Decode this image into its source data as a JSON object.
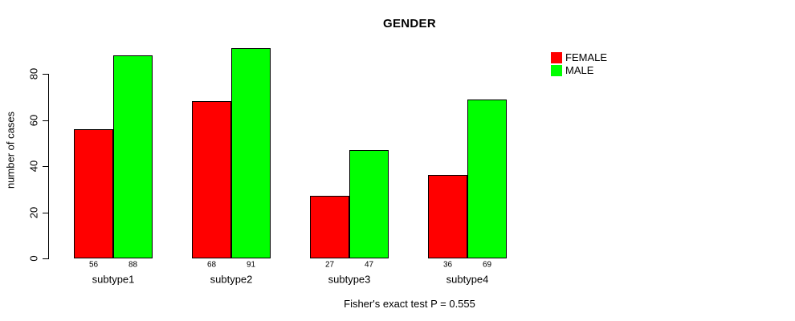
{
  "chart_data": {
    "type": "bar",
    "title": "GENDER",
    "xlabel": "",
    "ylabel": "number of cases",
    "categories": [
      "subtype1",
      "subtype2",
      "subtype3",
      "subtype4"
    ],
    "series": [
      {
        "name": "FEMALE",
        "color": "#ff0000",
        "values": [
          56,
          68,
          27,
          36
        ]
      },
      {
        "name": "MALE",
        "color": "#00ff00",
        "values": [
          88,
          91,
          47,
          69
        ]
      }
    ],
    "yticks": [
      0,
      20,
      40,
      60,
      80
    ],
    "ylim": [
      0,
      95
    ],
    "grid": false,
    "legend_position": "top-right",
    "value_labels_shown": true,
    "footnote": "Fisher's exact test P = 0.555"
  }
}
